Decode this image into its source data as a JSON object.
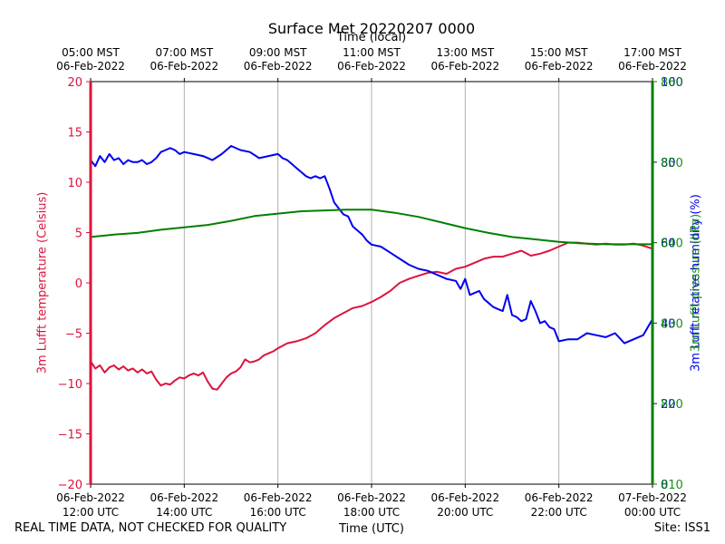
{
  "title": "Surface Met 20220207 0000",
  "footer": {
    "left": "REAL TIME DATA, NOT CHECKED FOR QUALITY",
    "right": "Site: ISS1"
  },
  "colors": {
    "temp": "#dc143c",
    "rh": "#0000ee",
    "pressure": "#008000",
    "grid": "#b0b0b0"
  },
  "chart_data": {
    "type": "line",
    "title": "Surface Met 20220207 0000",
    "x_top_label": "Time (local)",
    "x_bottom_label": "Time (UTC)",
    "x_range_utc_hours": [
      12,
      24
    ],
    "bottom_ticks": [
      {
        "h": 12,
        "line1": "06-Feb-2022",
        "line2": "12:00 UTC"
      },
      {
        "h": 14,
        "line1": "06-Feb-2022",
        "line2": "14:00 UTC"
      },
      {
        "h": 16,
        "line1": "06-Feb-2022",
        "line2": "16:00 UTC"
      },
      {
        "h": 18,
        "line1": "06-Feb-2022",
        "line2": "18:00 UTC"
      },
      {
        "h": 20,
        "line1": "06-Feb-2022",
        "line2": "20:00 UTC"
      },
      {
        "h": 22,
        "line1": "06-Feb-2022",
        "line2": "22:00 UTC"
      },
      {
        "h": 24,
        "line1": "07-Feb-2022",
        "line2": "00:00 UTC"
      }
    ],
    "top_ticks": [
      {
        "h": 12,
        "line1": "05:00 MST",
        "line2": "06-Feb-2022"
      },
      {
        "h": 14,
        "line1": "07:00 MST",
        "line2": "06-Feb-2022"
      },
      {
        "h": 16,
        "line1": "09:00 MST",
        "line2": "06-Feb-2022"
      },
      {
        "h": 18,
        "line1": "11:00 MST",
        "line2": "06-Feb-2022"
      },
      {
        "h": 20,
        "line1": "13:00 MST",
        "line2": "06-Feb-2022"
      },
      {
        "h": 22,
        "line1": "15:00 MST",
        "line2": "06-Feb-2022"
      },
      {
        "h": 24,
        "line1": "17:00 MST",
        "line2": "06-Feb-2022"
      }
    ],
    "left_axis": {
      "label": "3m Lufft temperature (Celsius)",
      "ylim": [
        -20,
        20
      ],
      "ticks": [
        "20",
        "15",
        "10",
        "5",
        "0",
        "−5",
        "−10",
        "−15",
        "−20"
      ],
      "tick_values": [
        20,
        15,
        10,
        5,
        0,
        -5,
        -10,
        -15,
        -20
      ]
    },
    "right_axis_rh": {
      "label": "3m Lufft relative humidity (%)",
      "ylim": [
        0,
        100
      ],
      "ticks": [
        "0",
        "20",
        "40",
        "60",
        "80",
        "100"
      ],
      "tick_values": [
        0,
        20,
        40,
        60,
        80,
        100
      ]
    },
    "right_axis_pressure": {
      "label": "3m Lufft pressure (hPa)",
      "ylim": [
        810,
        860
      ],
      "ticks": [
        "810",
        "820",
        "830",
        "840",
        "850",
        "860"
      ],
      "tick_values": [
        810,
        820,
        830,
        840,
        850,
        860
      ]
    },
    "series": [
      {
        "name": "temperature",
        "axis": "left",
        "color": "#dc143c",
        "x": [
          12.0,
          12.1,
          12.2,
          12.3,
          12.4,
          12.5,
          12.6,
          12.7,
          12.8,
          12.9,
          13.0,
          13.1,
          13.2,
          13.3,
          13.4,
          13.5,
          13.6,
          13.7,
          13.8,
          13.9,
          14.0,
          14.1,
          14.2,
          14.3,
          14.4,
          14.5,
          14.6,
          14.7,
          14.8,
          14.9,
          15.0,
          15.1,
          15.2,
          15.3,
          15.4,
          15.5,
          15.6,
          15.7,
          15.8,
          15.9,
          16.0,
          16.2,
          16.4,
          16.6,
          16.8,
          17.0,
          17.2,
          17.4,
          17.6,
          17.8,
          18.0,
          18.2,
          18.4,
          18.6,
          18.8,
          19.0,
          19.2,
          19.4,
          19.6,
          19.8,
          20.0,
          20.2,
          20.4,
          20.6,
          20.8,
          21.0,
          21.2,
          21.4,
          21.6,
          21.8,
          22.0,
          22.2,
          22.4,
          22.6,
          22.8,
          23.0,
          23.2,
          23.4,
          23.6,
          23.8,
          24.0
        ],
        "values": [
          -7.8,
          -8.5,
          -8.2,
          -8.9,
          -8.4,
          -8.2,
          -8.6,
          -8.3,
          -8.7,
          -8.5,
          -8.9,
          -8.6,
          -9.0,
          -8.8,
          -9.6,
          -10.2,
          -10.0,
          -10.1,
          -9.7,
          -9.4,
          -9.5,
          -9.2,
          -9.0,
          -9.2,
          -8.9,
          -9.8,
          -10.5,
          -10.6,
          -10.0,
          -9.4,
          -9.0,
          -8.8,
          -8.4,
          -7.6,
          -7.9,
          -7.8,
          -7.6,
          -7.2,
          -7.0,
          -6.8,
          -6.5,
          -6.0,
          -5.8,
          -5.5,
          -5.0,
          -4.2,
          -3.5,
          -3.0,
          -2.5,
          -2.3,
          -1.9,
          -1.4,
          -0.8,
          0.0,
          0.4,
          0.7,
          1.0,
          1.1,
          0.9,
          1.4,
          1.6,
          2.0,
          2.4,
          2.6,
          2.6,
          2.9,
          3.2,
          2.7,
          2.9,
          3.2,
          3.6,
          4.0,
          4.0,
          3.9,
          3.8,
          3.9,
          3.8,
          3.8,
          3.9,
          3.7,
          3.4
        ]
      },
      {
        "name": "relative humidity",
        "axis": "rh",
        "color": "#0000ee",
        "x": [
          12.0,
          12.1,
          12.2,
          12.3,
          12.4,
          12.5,
          12.6,
          12.7,
          12.8,
          12.9,
          13.0,
          13.1,
          13.2,
          13.3,
          13.4,
          13.5,
          13.6,
          13.7,
          13.8,
          13.9,
          14.0,
          14.2,
          14.4,
          14.6,
          14.8,
          15.0,
          15.2,
          15.4,
          15.6,
          15.8,
          16.0,
          16.1,
          16.2,
          16.3,
          16.4,
          16.5,
          16.6,
          16.7,
          16.8,
          16.9,
          17.0,
          17.1,
          17.2,
          17.3,
          17.4,
          17.5,
          17.6,
          17.7,
          17.8,
          17.9,
          18.0,
          18.2,
          18.4,
          18.6,
          18.8,
          19.0,
          19.2,
          19.4,
          19.6,
          19.8,
          19.9,
          20.0,
          20.1,
          20.2,
          20.3,
          20.4,
          20.5,
          20.6,
          20.7,
          20.8,
          20.9,
          21.0,
          21.1,
          21.2,
          21.3,
          21.4,
          21.5,
          21.6,
          21.7,
          21.8,
          21.9,
          22.0,
          22.2,
          22.4,
          22.6,
          22.8,
          23.0,
          23.2,
          23.4,
          23.6,
          23.8,
          24.0
        ],
        "values": [
          80.5,
          79.0,
          81.5,
          80.0,
          82.0,
          80.5,
          81.0,
          79.5,
          80.5,
          80.0,
          80.0,
          80.5,
          79.5,
          80.0,
          81.0,
          82.5,
          83.0,
          83.5,
          83.0,
          82.0,
          82.5,
          82.0,
          81.5,
          80.5,
          82.0,
          84.0,
          83.0,
          82.5,
          81.0,
          81.5,
          82.0,
          81.0,
          80.5,
          79.5,
          78.5,
          77.5,
          76.5,
          76.0,
          76.5,
          76.0,
          76.5,
          73.5,
          70.0,
          68.5,
          67.0,
          66.5,
          64.0,
          63.0,
          62.0,
          60.5,
          59.5,
          59.0,
          57.5,
          56.0,
          54.5,
          53.5,
          53.0,
          52.0,
          51.0,
          50.5,
          48.5,
          51.0,
          47.0,
          47.5,
          48.0,
          46.0,
          45.0,
          44.0,
          43.5,
          43.0,
          47.0,
          42.0,
          41.5,
          40.5,
          41.0,
          45.5,
          43.0,
          40.0,
          40.5,
          39.0,
          38.5,
          35.5,
          36.0,
          36.0,
          37.5,
          37.0,
          36.5,
          37.5,
          35.0,
          36.0,
          37.0,
          41.0
        ]
      },
      {
        "name": "pressure",
        "axis": "pressure",
        "color": "#008000",
        "x": [
          12.0,
          12.5,
          13.0,
          13.5,
          14.0,
          14.5,
          15.0,
          15.5,
          16.0,
          16.5,
          17.0,
          17.5,
          18.0,
          18.5,
          19.0,
          19.5,
          20.0,
          20.5,
          21.0,
          21.5,
          22.0,
          22.5,
          23.0,
          23.5,
          24.0
        ],
        "values": [
          840.7,
          841.0,
          841.2,
          841.6,
          841.9,
          842.2,
          842.7,
          843.3,
          843.6,
          843.9,
          844.0,
          844.1,
          844.1,
          843.7,
          843.2,
          842.5,
          841.8,
          841.2,
          840.7,
          840.4,
          840.1,
          839.9,
          839.8,
          839.8,
          839.8
        ]
      }
    ]
  }
}
